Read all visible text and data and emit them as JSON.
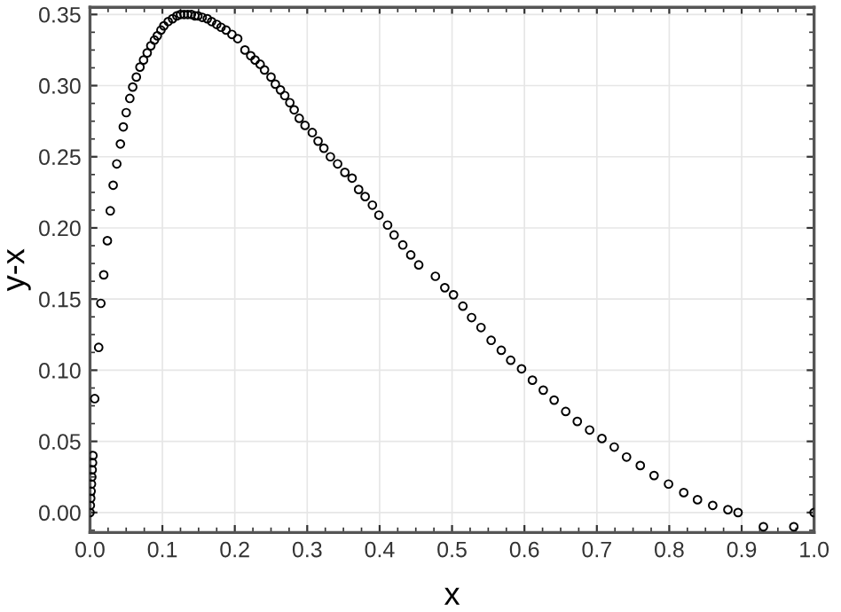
{
  "chart_data": {
    "type": "scatter",
    "xlabel": "x",
    "ylabel": "y-x",
    "xlim": [
      0,
      1
    ],
    "ylim": [
      -0.014,
      0.355
    ],
    "xticks": [
      {
        "value": 0,
        "label": "0.0"
      },
      0.1,
      0.2,
      0.3,
      0.4,
      0.5,
      0.6,
      0.7,
      0.8,
      0.9,
      {
        "value": 1,
        "label": "1.0"
      }
    ],
    "yticks": [
      {
        "value": 0,
        "label": "0.00"
      },
      0.05,
      {
        "value": 0.1,
        "label": "0.10"
      },
      0.15,
      {
        "value": 0.2,
        "label": "0.20"
      },
      0.25,
      {
        "value": 0.3,
        "label": "0.30"
      },
      0.35
    ],
    "grid": true,
    "marker": "circle",
    "series": [
      {
        "color": "#000000",
        "x": [
          0.0,
          0.0005,
          0.001,
          0.0015,
          0.002,
          0.0025,
          0.003,
          0.0035,
          0.004,
          0.0065,
          0.012,
          0.015,
          0.019,
          0.024,
          0.028,
          0.032,
          0.037,
          0.042,
          0.046,
          0.05,
          0.055,
          0.059,
          0.064,
          0.069,
          0.074,
          0.079,
          0.084,
          0.089,
          0.093,
          0.098,
          0.102,
          0.108,
          0.114,
          0.12,
          0.125,
          0.13,
          0.135,
          0.14,
          0.145,
          0.149,
          0.155,
          0.162,
          0.168,
          0.175,
          0.181,
          0.188,
          0.196,
          0.204,
          0.214,
          0.222,
          0.228,
          0.235,
          0.241,
          0.25,
          0.256,
          0.263,
          0.269,
          0.276,
          0.282,
          0.289,
          0.297,
          0.307,
          0.315,
          0.323,
          0.332,
          0.342,
          0.352,
          0.362,
          0.371,
          0.38,
          0.39,
          0.399,
          0.411,
          0.42,
          0.432,
          0.443,
          0.454,
          0.477,
          0.49,
          0.502,
          0.515,
          0.527,
          0.54,
          0.554,
          0.568,
          0.581,
          0.596,
          0.611,
          0.626,
          0.641,
          0.657,
          0.673,
          0.69,
          0.707,
          0.724,
          0.741,
          0.76,
          0.779,
          0.799,
          0.82,
          0.839,
          0.86,
          0.881,
          0.895,
          0.93,
          0.972,
          1.0
        ],
        "values": [
          0.0,
          0.005,
          0.01,
          0.015,
          0.02,
          0.025,
          0.03,
          0.035,
          0.04,
          0.08,
          0.116,
          0.147,
          0.167,
          0.191,
          0.212,
          0.23,
          0.245,
          0.259,
          0.271,
          0.281,
          0.291,
          0.299,
          0.306,
          0.313,
          0.318,
          0.323,
          0.328,
          0.332,
          0.335,
          0.339,
          0.342,
          0.345,
          0.347,
          0.349,
          0.35,
          0.35,
          0.35,
          0.35,
          0.349,
          0.349,
          0.348,
          0.347,
          0.345,
          0.343,
          0.341,
          0.339,
          0.336,
          0.333,
          0.325,
          0.321,
          0.318,
          0.315,
          0.311,
          0.306,
          0.301,
          0.297,
          0.293,
          0.288,
          0.283,
          0.277,
          0.272,
          0.267,
          0.261,
          0.256,
          0.25,
          0.245,
          0.239,
          0.235,
          0.227,
          0.222,
          0.216,
          0.209,
          0.202,
          0.195,
          0.188,
          0.181,
          0.174,
          0.166,
          0.158,
          0.153,
          0.145,
          0.137,
          0.13,
          0.121,
          0.114,
          0.107,
          0.101,
          0.093,
          0.086,
          0.079,
          0.071,
          0.064,
          0.058,
          0.052,
          0.046,
          0.039,
          0.033,
          0.026,
          0.02,
          0.014,
          0.009,
          0.005,
          0.002,
          0.0,
          -0.01,
          -0.01,
          0.0
        ]
      }
    ]
  }
}
